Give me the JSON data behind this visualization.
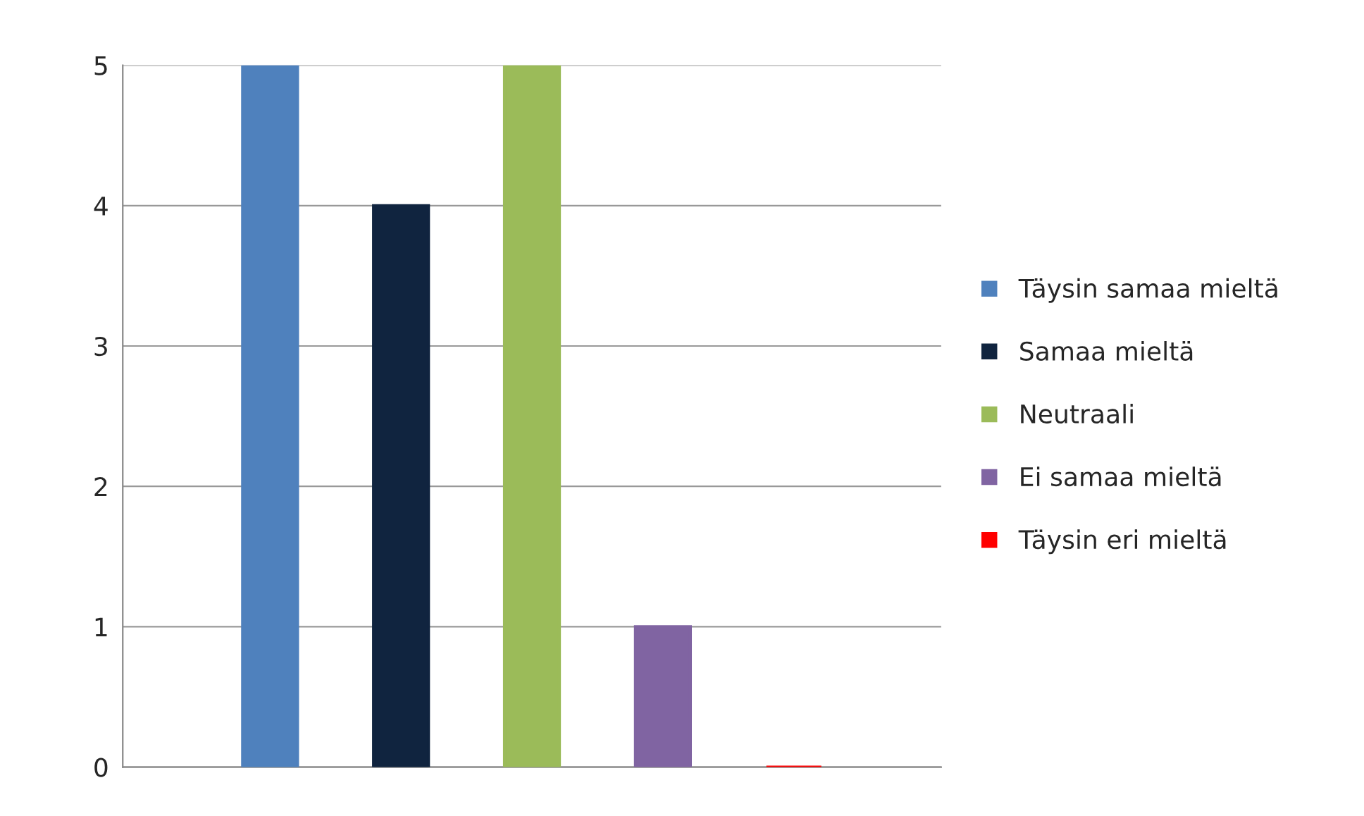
{
  "chart_data": {
    "type": "bar",
    "categories": [
      null
    ],
    "series": [
      {
        "name": "Täysin samaa mieltä",
        "color": "#4f81bd",
        "values": [
          5
        ]
      },
      {
        "name": "Samaa mieltä",
        "color": "#10243f",
        "values": [
          4
        ]
      },
      {
        "name": "Neutraali",
        "color": "#9bbb59",
        "values": [
          5
        ]
      },
      {
        "name": "Ei samaa mieltä",
        "color": "#8064a2",
        "values": [
          1
        ]
      },
      {
        "name": "Täysin eri mieltä",
        "color": "#ff0000",
        "values": [
          0
        ]
      }
    ],
    "ylim": [
      0,
      5
    ],
    "yticks": [
      0,
      1,
      2,
      3,
      4,
      5
    ],
    "grid": "y",
    "legend": "right"
  }
}
